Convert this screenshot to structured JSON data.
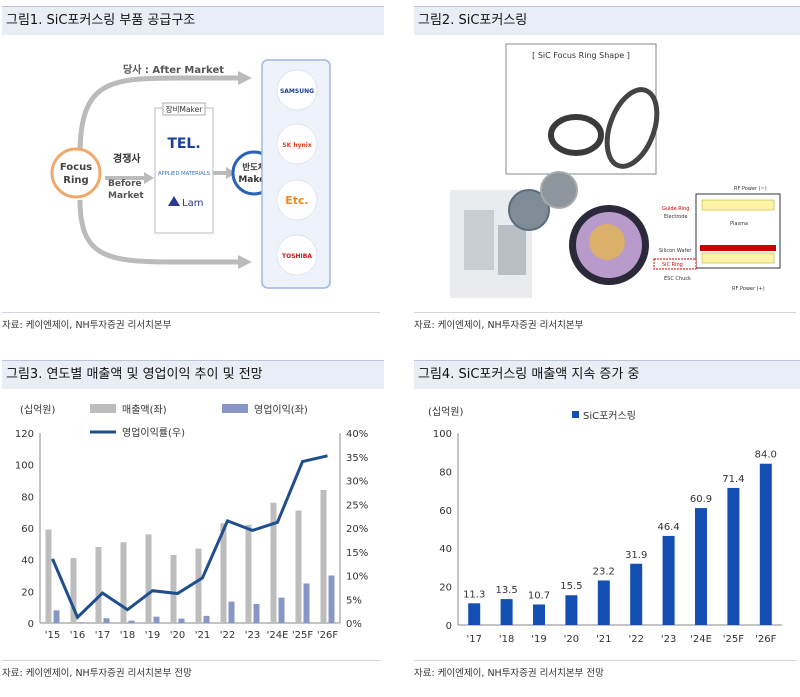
{
  "fig1": {
    "title": "그림1. SiC포커스링 부품 공급구조",
    "after_market": "당사 : After Market",
    "competitor": "경쟁사",
    "before_market_1": "Before",
    "before_market_2": "Market",
    "focus_ring_1": "Focus",
    "focus_ring_2": "Ring",
    "equipment_maker": "장비Maker",
    "makers": [
      "TEL.",
      "APPLIED MATERIALS",
      "Lam"
    ],
    "semi_maker_1": "반도체",
    "semi_maker_2": "Maker",
    "customers": [
      "SAMSUNG",
      "SK hynix",
      "Etc.",
      "TOSHIBA"
    ],
    "source": "자료: 케이엔제이, NH투자증권 리서치본부"
  },
  "fig2": {
    "title": "그림2. SiC포커스링",
    "shape_label": "[ SiC Focus Ring Shape ]",
    "diagram_labels": [
      "RF Power (~)",
      "Guide Ring",
      "Electrode",
      "Silicon Wafer",
      "SiC Ring",
      "ESC Chuck",
      "RF Power (+)",
      "Plasma"
    ],
    "source": "자료: 케이엔제이, NH투자증권 리서치본부"
  },
  "fig3": {
    "title": "그림3. 연도별 매출액 및 영업이익 추이 및 전망",
    "source": "자료: 케이엔제이, NH투자증권 리서치본부 전망"
  },
  "fig4": {
    "title": "그림4. SiC포커스링 매출액 지속 증가 중",
    "source": "자료: 케이엔제이, NH투자증권 리서치본부 전망"
  },
  "chart_data": [
    {
      "type": "bar",
      "categories": [
        "'15",
        "'16",
        "'17",
        "'18",
        "'19",
        "'20",
        "'21",
        "'22",
        "'23",
        "'24E",
        "'25F",
        "'26F"
      ],
      "unit": "(십억원)",
      "series": [
        {
          "name": "매출액(좌)",
          "type": "bar",
          "axis": "left",
          "color": "#bdbdbd",
          "values": [
            59,
            41,
            48,
            51,
            56,
            43,
            47,
            63,
            62,
            76,
            71,
            84
          ]
        },
        {
          "name": "영업이익(좌)",
          "type": "bar",
          "axis": "left",
          "color": "#8796c6",
          "values": [
            8,
            0.5,
            3,
            1.5,
            4,
            2.8,
            4.5,
            13.5,
            12,
            16,
            25,
            30
          ]
        },
        {
          "name": "영업이익률(우)",
          "type": "line",
          "axis": "right",
          "color": "#1f4e8c",
          "values": [
            13.5,
            1.2,
            6.3,
            2.8,
            6.8,
            6.2,
            9.5,
            21.5,
            19.5,
            21.2,
            34,
            35.2
          ]
        }
      ],
      "y_left": {
        "min": 0,
        "max": 120,
        "ticks": [
          "0",
          "20",
          "40",
          "60",
          "80",
          "100",
          "120"
        ]
      },
      "y_right": {
        "min": 0,
        "max": 40,
        "ticks": [
          "0%",
          "5%",
          "10%",
          "15%",
          "20%",
          "25%",
          "30%",
          "35%",
          "40%"
        ]
      },
      "grid": false,
      "legend": "top"
    },
    {
      "type": "bar",
      "categories": [
        "'17",
        "'18",
        "'19",
        "'20",
        "'21",
        "'22",
        "'23",
        "'24E",
        "'25F",
        "'26F"
      ],
      "unit": "(십억원)",
      "series": [
        {
          "name": "SiC포커스링",
          "color": "#1450b4",
          "values": [
            11.3,
            13.5,
            10.7,
            15.5,
            23.2,
            31.9,
            46.4,
            60.9,
            71.4,
            84.0
          ],
          "labels": [
            "11.3",
            "13.5",
            "10.7",
            "15.5",
            "23.2",
            "31.9",
            "46.4",
            "60.9",
            "71.4",
            "84.0"
          ]
        }
      ],
      "y": {
        "min": 0,
        "max": 100,
        "ticks": [
          "0",
          "20",
          "40",
          "60",
          "80",
          "100"
        ]
      },
      "grid": false,
      "legend": "top"
    }
  ]
}
